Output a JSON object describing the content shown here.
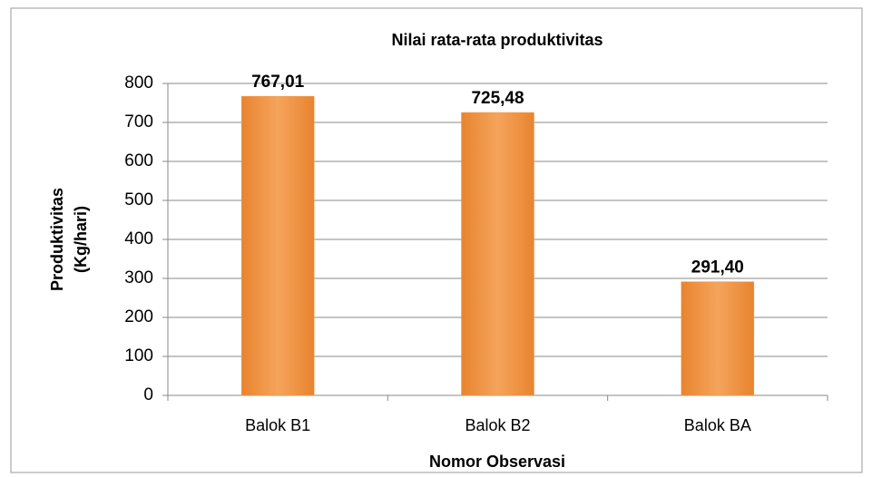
{
  "chart_data": {
    "type": "bar",
    "title": "Nilai rata-rata produktivitas",
    "x_label": "Nomor Observasi",
    "y_label": [
      "Produktivitas",
      "(Kg/hari)"
    ],
    "categories": [
      "Balok B1",
      "Balok B2",
      "Balok BA"
    ],
    "values": [
      767.01,
      725.48,
      291.4
    ],
    "value_labels": [
      "767,01",
      "725,48",
      "291,40"
    ],
    "color": "#f2994a",
    "ylim": [
      0,
      800
    ],
    "yticks": [
      0,
      100,
      200,
      300,
      400,
      500,
      600,
      700,
      800
    ],
    "grid": true
  }
}
